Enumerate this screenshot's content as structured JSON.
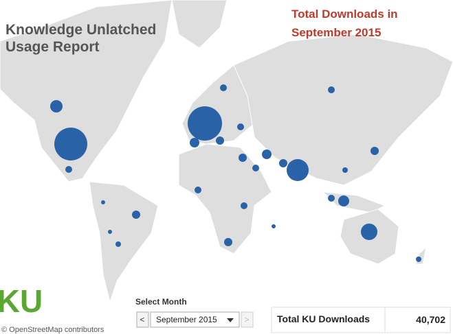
{
  "header": {
    "title_line1": "Knowledge Unlatched",
    "title_line2": "Usage Report",
    "subtitle_line1": "Total Downloads in",
    "subtitle_line2": "September 2015"
  },
  "controls": {
    "select_label": "Select Month",
    "selected_month": "September 2015"
  },
  "summary": {
    "label": "Total KU Downloads",
    "value": "40,702"
  },
  "logo": {
    "text": "KU"
  },
  "attribution": "© OpenStreetMap contributors"
}
